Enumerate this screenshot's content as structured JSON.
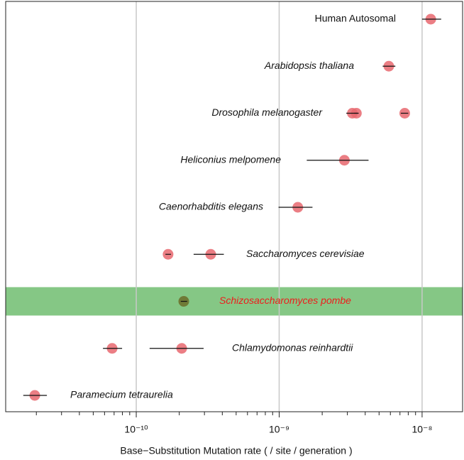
{
  "chart_data": {
    "type": "scatter",
    "xlabel": "Base−Substitution Mutation rate ( / site / generation )",
    "log_x": true,
    "xlim": [
      1.22e-11,
      1.92e-08
    ],
    "xticks": [
      {
        "value": 1e-10,
        "label": "10⁻¹⁰"
      },
      {
        "value": 1e-09,
        "label": "10⁻⁹"
      },
      {
        "value": 1e-08,
        "label": "10⁻⁸"
      }
    ],
    "xminorticks": [
      2e-11,
      3e-11,
      4e-11,
      5e-11,
      6e-11,
      7e-11,
      8e-11,
      9e-11,
      2e-10,
      3e-10,
      4e-10,
      5e-10,
      6e-10,
      7e-10,
      8e-10,
      9e-10,
      2e-09,
      3e-09,
      4e-09,
      5e-09,
      6e-09,
      7e-09,
      8e-09,
      9e-09
    ],
    "grid": true,
    "point_color": "#e8676f",
    "highlight_row": 6,
    "highlight_color": "#85c785",
    "highlight_point_color": "#6f7a36",
    "highlight_label_color": "#ee1c1c",
    "rows": [
      {
        "label": "Human Autosomal",
        "italic": false,
        "values": [
          1.15e-08
        ],
        "low": [
          1e-08
        ],
        "high": [
          1.36e-08
        ]
      },
      {
        "label": "Arabidopsis thaliana",
        "italic": true,
        "values": [
          5.85e-09
        ],
        "low": [
          5.3e-09
        ],
        "high": [
          6.5e-09
        ]
      },
      {
        "label": "Drosophila melanogaster",
        "italic": true,
        "values": [
          3.25e-09,
          3.47e-09,
          7.56e-09
        ],
        "low": [
          2.95e-09,
          3.35e-09,
          7.1e-09
        ],
        "high": [
          3.55e-09,
          3.6e-09,
          8e-09
        ]
      },
      {
        "label": "Heliconius melpomene",
        "italic": true,
        "values": [
          2.86e-09
        ],
        "low": [
          1.56e-09
        ],
        "high": [
          4.22e-09
        ]
      },
      {
        "label": "Caenorhabditis elegans",
        "italic": true,
        "values": [
          1.35e-09
        ],
        "low": [
          9.9e-10
        ],
        "high": [
          1.71e-09
        ]
      },
      {
        "label": "Saccharomyces cerevisiae",
        "italic": true,
        "values": [
          1.67e-10,
          3.32e-10
        ],
        "low": [
          1.6e-10,
          2.52e-10
        ],
        "high": [
          1.75e-10,
          4.1e-10
        ]
      },
      {
        "label": "Schizosaccharomyces pombe",
        "italic": true,
        "values": [
          2.15e-10
        ],
        "low": [
          2.05e-10
        ],
        "high": [
          2.27e-10
        ]
      },
      {
        "label": "Chlamydomonas reinhardtii",
        "italic": true,
        "values": [
          6.78e-11,
          2.08e-10
        ],
        "low": [
          5.85e-11,
          1.24e-10
        ],
        "high": [
          7.96e-11,
          2.96e-10
        ]
      },
      {
        "label": "Paramecium tetraurelia",
        "italic": true,
        "values": [
          1.95e-11
        ],
        "low": [
          1.62e-11
        ],
        "high": [
          2.37e-11
        ]
      }
    ]
  }
}
